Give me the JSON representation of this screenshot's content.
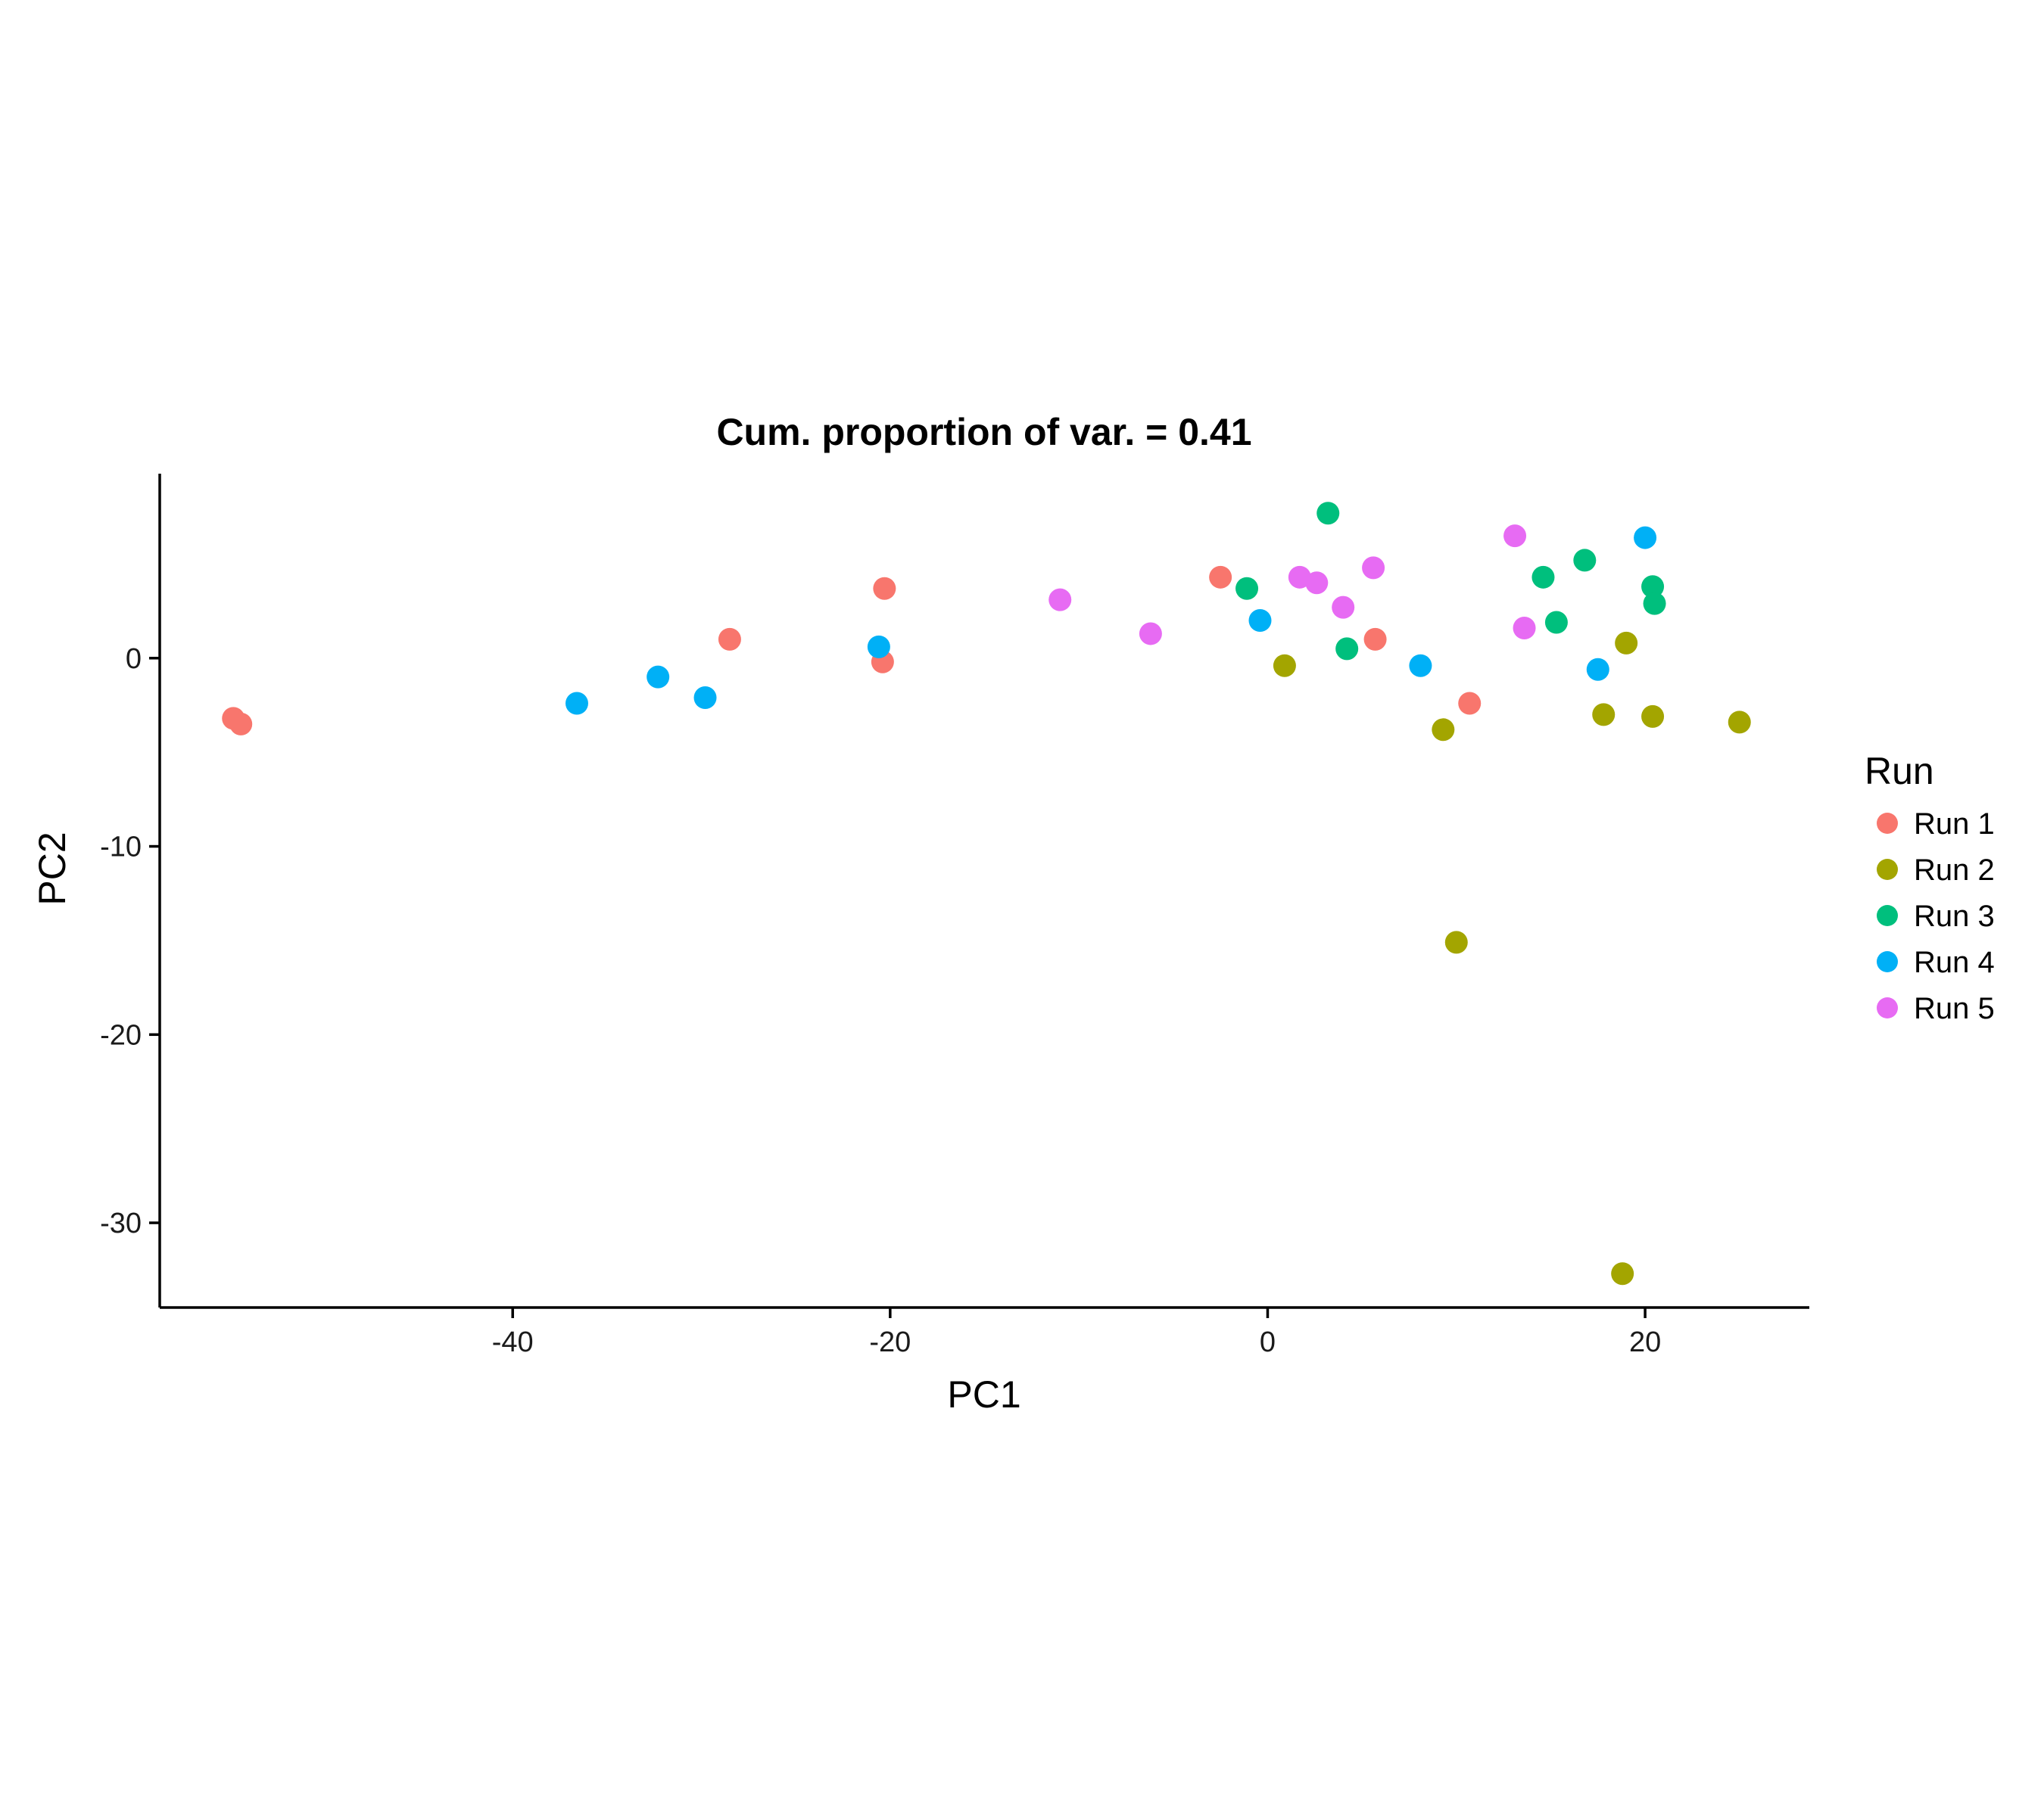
{
  "chart_data": {
    "type": "scatter",
    "title": "Cum. proportion of var. = 0.41",
    "xlabel": "PC1",
    "ylabel": "PC2",
    "xlim": [
      -58.7,
      28.7
    ],
    "ylim": [
      -34.5,
      9.8
    ],
    "xticks": [
      -40,
      -20,
      0,
      20
    ],
    "yticks": [
      0,
      -10,
      -20,
      -30
    ],
    "grid": false,
    "legend": {
      "title": "Run",
      "position": "right"
    },
    "series": [
      {
        "name": "Run 1",
        "color": "#F8766D",
        "points": [
          {
            "x": -54.8,
            "y": -3.2
          },
          {
            "x": -54.4,
            "y": -3.5
          },
          {
            "x": -28.5,
            "y": 1.0
          },
          {
            "x": -20.3,
            "y": 3.7
          },
          {
            "x": -20.4,
            "y": -0.2
          },
          {
            "x": -2.5,
            "y": 4.3
          },
          {
            "x": 5.7,
            "y": 1.0
          },
          {
            "x": 10.7,
            "y": -2.4
          }
        ]
      },
      {
        "name": "Run 2",
        "color": "#A3A500",
        "points": [
          {
            "x": 0.9,
            "y": -0.4
          },
          {
            "x": 9.3,
            "y": -3.8
          },
          {
            "x": 10.0,
            "y": -15.1
          },
          {
            "x": 17.8,
            "y": -3.0
          },
          {
            "x": 19.0,
            "y": 0.8
          },
          {
            "x": 20.4,
            "y": -3.1
          },
          {
            "x": 25.0,
            "y": -3.4
          },
          {
            "x": 18.8,
            "y": -32.7
          }
        ]
      },
      {
        "name": "Run 3",
        "color": "#00BF7D",
        "points": [
          {
            "x": 3.2,
            "y": 7.7
          },
          {
            "x": -1.1,
            "y": 3.7
          },
          {
            "x": 4.2,
            "y": 0.5
          },
          {
            "x": 14.6,
            "y": 4.3
          },
          {
            "x": 15.3,
            "y": 1.9
          },
          {
            "x": 16.8,
            "y": 5.2
          },
          {
            "x": 20.4,
            "y": 3.8
          },
          {
            "x": 20.5,
            "y": 2.9
          }
        ]
      },
      {
        "name": "Run 4",
        "color": "#00B0F6",
        "points": [
          {
            "x": -36.6,
            "y": -2.4
          },
          {
            "x": -32.3,
            "y": -1.0
          },
          {
            "x": -29.8,
            "y": -2.1
          },
          {
            "x": -20.6,
            "y": 0.6
          },
          {
            "x": -0.4,
            "y": 2.0
          },
          {
            "x": 8.1,
            "y": -0.4
          },
          {
            "x": 17.5,
            "y": -0.6
          },
          {
            "x": 20.0,
            "y": 6.4
          }
        ]
      },
      {
        "name": "Run 5",
        "color": "#E76BF3",
        "points": [
          {
            "x": -11.0,
            "y": 3.1
          },
          {
            "x": -6.2,
            "y": 1.3
          },
          {
            "x": 1.7,
            "y": 4.3
          },
          {
            "x": 2.6,
            "y": 4.0
          },
          {
            "x": 4.0,
            "y": 2.7
          },
          {
            "x": 5.6,
            "y": 4.8
          },
          {
            "x": 13.1,
            "y": 6.5
          },
          {
            "x": 13.6,
            "y": 1.6
          }
        ]
      }
    ]
  }
}
